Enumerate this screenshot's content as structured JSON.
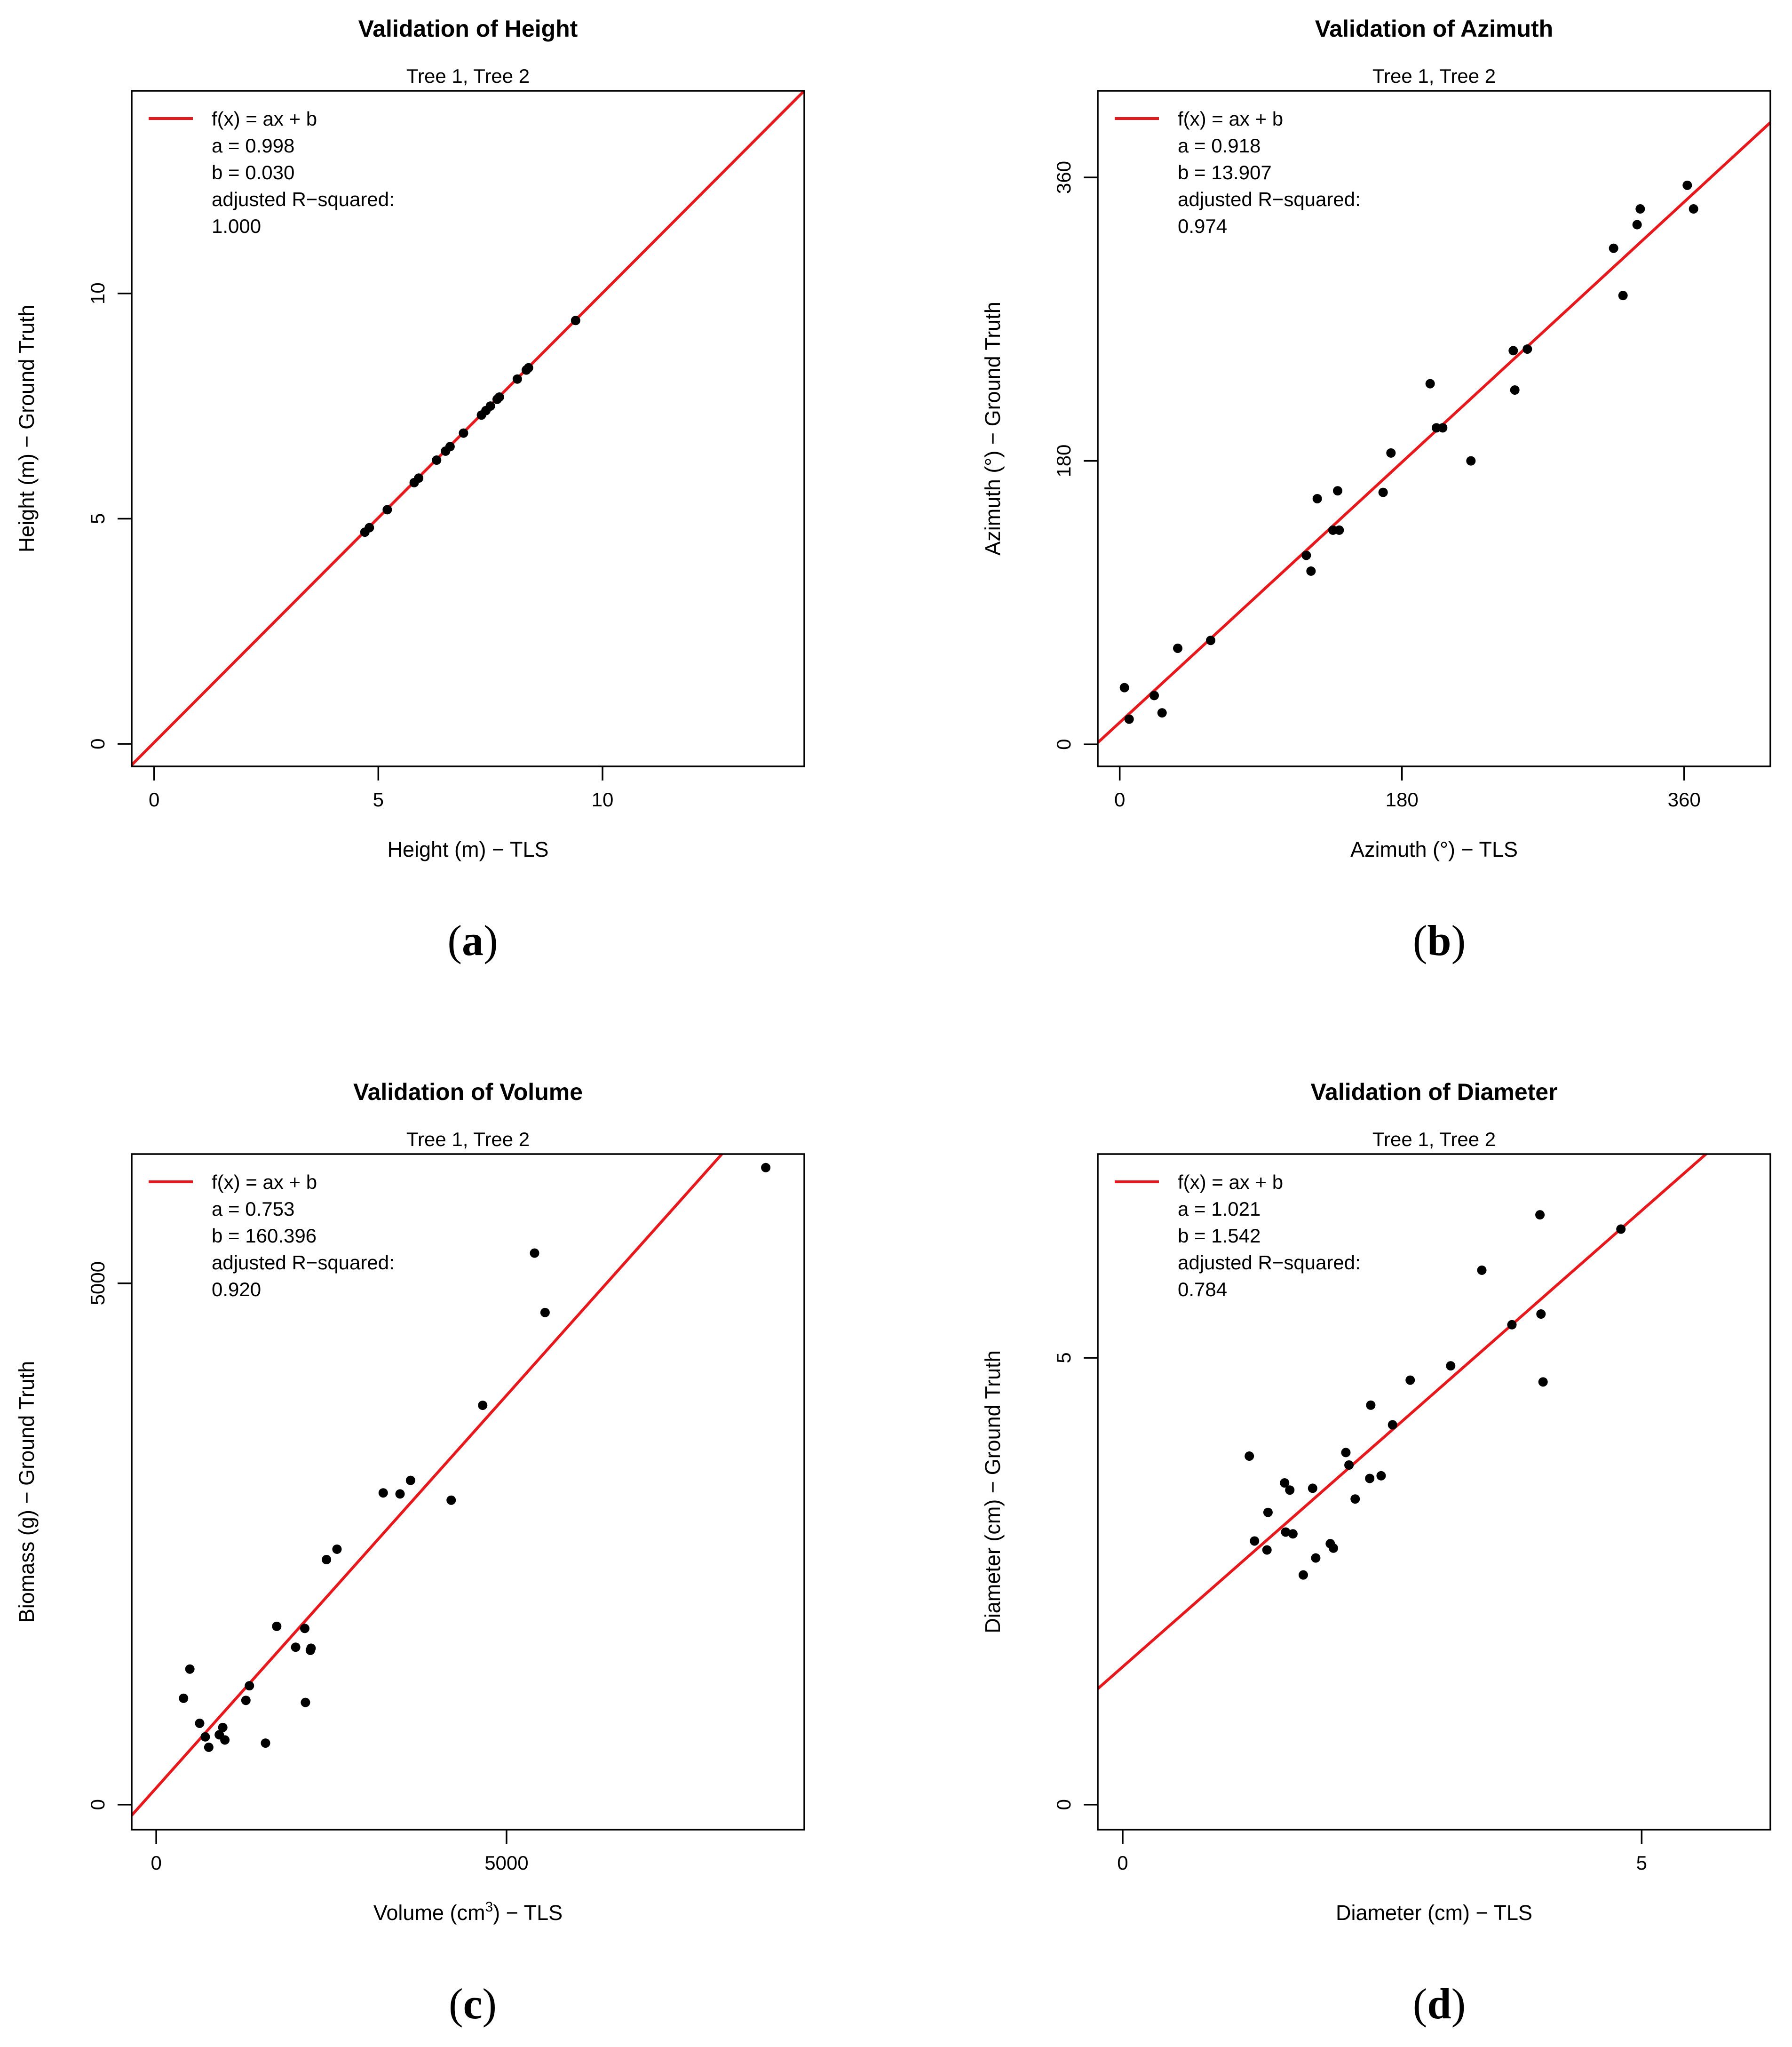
{
  "figure": {
    "panel_labels": [
      "a",
      "b",
      "c",
      "d"
    ]
  },
  "colors": {
    "fit_line": "#e8191d",
    "points": "#000000",
    "axes": "#000000",
    "background": "#ffffff"
  },
  "chart_data": [
    {
      "type": "scatter",
      "panel": "a",
      "title": "Validation of Height",
      "subtitle": "Tree 1, Tree 2",
      "xlabel": "Height (m) − TLS",
      "ylabel": "Height (m) − Ground Truth",
      "xlim": [
        -0.5,
        14.5
      ],
      "ylim": [
        -0.5,
        14.5
      ],
      "xticks": [
        0,
        5,
        10
      ],
      "yticks": [
        0,
        5,
        10
      ],
      "grid": false,
      "legend": {
        "placement": "top-left",
        "lines": [
          "f(x) = ax + b",
          "a = 0.998",
          "b = 0.030",
          "adjusted R−squared:",
          "1.000"
        ]
      },
      "fit": {
        "a": 0.998,
        "b": 0.03
      },
      "points": [
        [
          4.7,
          4.7
        ],
        [
          4.8,
          4.8
        ],
        [
          5.2,
          5.2
        ],
        [
          5.8,
          5.8
        ],
        [
          5.9,
          5.9
        ],
        [
          6.3,
          6.3
        ],
        [
          6.5,
          6.5
        ],
        [
          6.6,
          6.6
        ],
        [
          6.9,
          6.9
        ],
        [
          7.3,
          7.3
        ],
        [
          7.4,
          7.4
        ],
        [
          7.5,
          7.5
        ],
        [
          7.65,
          7.65
        ],
        [
          7.7,
          7.7
        ],
        [
          8.1,
          8.1
        ],
        [
          8.3,
          8.3
        ],
        [
          8.35,
          8.35
        ],
        [
          9.4,
          9.4
        ]
      ]
    },
    {
      "type": "scatter",
      "panel": "b",
      "title": "Validation of Azimuth",
      "subtitle": "Tree 1, Tree 2",
      "xlabel": "Azimuth (°) − TLS",
      "ylabel": "Azimuth (°) − Ground Truth",
      "xlim": [
        -14,
        415
      ],
      "ylim": [
        -14,
        415
      ],
      "xticks": [
        0,
        180,
        360
      ],
      "yticks": [
        0,
        180,
        360
      ],
      "grid": false,
      "legend": {
        "placement": "top-left",
        "lines": [
          "f(x) = ax + b",
          "a = 0.918",
          "b = 13.907",
          "adjusted R−squared:",
          "0.974"
        ]
      },
      "fit": {
        "a": 0.918,
        "b": 13.907
      },
      "points": [
        [
          3,
          36
        ],
        [
          6,
          16
        ],
        [
          22,
          31
        ],
        [
          27,
          20
        ],
        [
          37,
          61
        ],
        [
          58,
          66
        ],
        [
          119,
          120
        ],
        [
          122,
          110
        ],
        [
          126,
          156
        ],
        [
          136,
          136
        ],
        [
          139,
          161
        ],
        [
          140,
          136
        ],
        [
          168,
          160
        ],
        [
          173,
          185
        ],
        [
          198,
          229
        ],
        [
          202,
          201
        ],
        [
          206,
          201
        ],
        [
          224,
          180
        ],
        [
          251,
          250
        ],
        [
          252,
          225
        ],
        [
          260,
          251
        ],
        [
          315,
          315
        ],
        [
          321,
          285
        ],
        [
          330,
          330
        ],
        [
          332,
          340
        ],
        [
          362,
          355
        ],
        [
          366,
          340
        ]
      ]
    },
    {
      "type": "scatter",
      "panel": "c",
      "title": "Validation of Volume",
      "subtitle": "Tree 1, Tree 2",
      "xlabel": "Volume (cm³) − TLS",
      "xlabel_parts": [
        "Volume (cm",
        "3",
        ") − TLS"
      ],
      "ylabel": "Biomass (g) − Ground Truth",
      "xlim": [
        -350,
        9250
      ],
      "ylim": [
        -240,
        6240
      ],
      "xticks": [
        0,
        5000
      ],
      "yticks": [
        0,
        5000
      ],
      "grid": false,
      "legend": {
        "placement": "top-left",
        "lines": [
          "f(x) = ax + b",
          "a = 0.753",
          "b = 160.396",
          "adjusted R−squared:",
          "0.920"
        ]
      },
      "fit": {
        "a": 0.753,
        "b": 160.396
      },
      "points": [
        [
          390,
          1020
        ],
        [
          480,
          1300
        ],
        [
          620,
          780
        ],
        [
          700,
          650
        ],
        [
          750,
          550
        ],
        [
          900,
          670
        ],
        [
          950,
          740
        ],
        [
          980,
          620
        ],
        [
          1280,
          1000
        ],
        [
          1330,
          1140
        ],
        [
          1560,
          590
        ],
        [
          1720,
          1710
        ],
        [
          1990,
          1510
        ],
        [
          2120,
          1690
        ],
        [
          2130,
          980
        ],
        [
          2200,
          1480
        ],
        [
          2210,
          1500
        ],
        [
          2430,
          2350
        ],
        [
          2580,
          2450
        ],
        [
          3240,
          2990
        ],
        [
          3480,
          2980
        ],
        [
          3630,
          3110
        ],
        [
          4210,
          2920
        ],
        [
          4660,
          3830
        ],
        [
          5400,
          5290
        ],
        [
          5550,
          4720
        ],
        [
          8700,
          6110
        ]
      ]
    },
    {
      "type": "scatter",
      "panel": "d",
      "title": "Validation of Diameter",
      "subtitle": "Tree 1, Tree 2",
      "xlabel": "Diameter (cm) − TLS",
      "ylabel": "Diameter (cm) − Ground Truth",
      "xlim": [
        -0.24,
        6.24
      ],
      "ylim": [
        -0.28,
        7.28
      ],
      "xticks": [
        0,
        5
      ],
      "yticks": [
        0,
        5
      ],
      "grid": false,
      "legend": {
        "placement": "top-left",
        "lines": [
          "f(x) = ax + b",
          "a = 1.021",
          "b = 1.542",
          "adjusted R−squared:",
          "0.784"
        ]
      },
      "fit": {
        "a": 1.021,
        "b": 1.542
      },
      "points": [
        [
          1.22,
          3.9
        ],
        [
          1.27,
          2.95
        ],
        [
          1.39,
          2.85
        ],
        [
          1.4,
          3.27
        ],
        [
          1.56,
          3.6
        ],
        [
          1.57,
          3.05
        ],
        [
          1.61,
          3.52
        ],
        [
          1.64,
          3.03
        ],
        [
          1.74,
          2.57
        ],
        [
          1.83,
          3.54
        ],
        [
          1.86,
          2.76
        ],
        [
          2.0,
          2.92
        ],
        [
          2.03,
          2.87
        ],
        [
          2.15,
          3.94
        ],
        [
          2.18,
          3.8
        ],
        [
          2.24,
          3.42
        ],
        [
          2.38,
          3.65
        ],
        [
          2.39,
          4.47
        ],
        [
          2.49,
          3.68
        ],
        [
          2.6,
          4.25
        ],
        [
          2.77,
          4.75
        ],
        [
          3.16,
          4.91
        ],
        [
          3.46,
          5.98
        ],
        [
          3.75,
          5.37
        ],
        [
          4.02,
          6.6
        ],
        [
          4.03,
          5.49
        ],
        [
          4.05,
          4.73
        ],
        [
          4.8,
          6.44
        ]
      ]
    }
  ]
}
